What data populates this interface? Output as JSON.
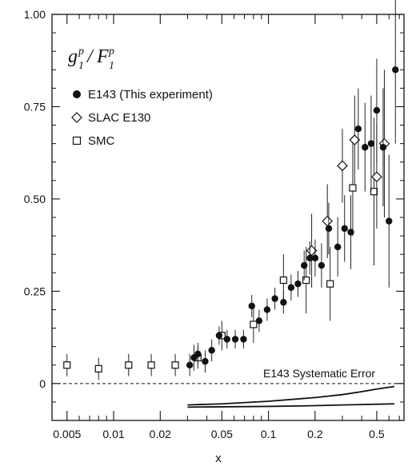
{
  "chart_data": {
    "type": "scatter",
    "title": "",
    "ylabel": {
      "main": "g",
      "sup1": "p",
      "sub1": "1",
      "slash": "/",
      "main2": "F",
      "sup2": "p",
      "sub2": "1"
    },
    "xlabel": "x",
    "x_scale": "log",
    "xlim": [
      0.004,
      0.75
    ],
    "ylim": [
      -0.1,
      1.0
    ],
    "x_tick_labels": [
      "0.005",
      "0.01",
      "0.02",
      "0.05",
      "0.1",
      "0.2",
      "0.5"
    ],
    "x_tick_values": [
      0.005,
      0.01,
      0.02,
      0.05,
      0.1,
      0.2,
      0.5
    ],
    "y_tick_labels": [
      "0",
      "0.25",
      "0.50",
      "0.75",
      "1.00"
    ],
    "y_tick_values": [
      0,
      0.25,
      0.5,
      0.75,
      1.0
    ],
    "grid": false,
    "legend_position": "top-left",
    "series": [
      {
        "name": "E143 (This experiment)",
        "marker": "filled-circle",
        "points": [
          {
            "x": 0.031,
            "y": 0.05,
            "err": 0.03
          },
          {
            "x": 0.033,
            "y": 0.07,
            "err": 0.035
          },
          {
            "x": 0.035,
            "y": 0.08,
            "err": 0.03
          },
          {
            "x": 0.039,
            "y": 0.06,
            "err": 0.03
          },
          {
            "x": 0.043,
            "y": 0.09,
            "err": 0.03
          },
          {
            "x": 0.048,
            "y": 0.13,
            "err": 0.025
          },
          {
            "x": 0.054,
            "y": 0.12,
            "err": 0.025
          },
          {
            "x": 0.061,
            "y": 0.12,
            "err": 0.025
          },
          {
            "x": 0.069,
            "y": 0.12,
            "err": 0.025
          },
          {
            "x": 0.078,
            "y": 0.21,
            "err": 0.03
          },
          {
            "x": 0.087,
            "y": 0.17,
            "err": 0.03
          },
          {
            "x": 0.098,
            "y": 0.2,
            "err": 0.03
          },
          {
            "x": 0.11,
            "y": 0.23,
            "err": 0.03
          },
          {
            "x": 0.125,
            "y": 0.22,
            "err": 0.03
          },
          {
            "x": 0.14,
            "y": 0.26,
            "err": 0.035
          },
          {
            "x": 0.155,
            "y": 0.27,
            "err": 0.035
          },
          {
            "x": 0.17,
            "y": 0.32,
            "err": 0.04
          },
          {
            "x": 0.185,
            "y": 0.34,
            "err": 0.045
          },
          {
            "x": 0.2,
            "y": 0.34,
            "err": 0.05
          },
          {
            "x": 0.22,
            "y": 0.32,
            "err": 0.06
          },
          {
            "x": 0.245,
            "y": 0.42,
            "err": 0.07
          },
          {
            "x": 0.28,
            "y": 0.37,
            "err": 0.08
          },
          {
            "x": 0.31,
            "y": 0.42,
            "err": 0.09
          },
          {
            "x": 0.34,
            "y": 0.41,
            "err": 0.1
          },
          {
            "x": 0.38,
            "y": 0.69,
            "err": 0.11
          },
          {
            "x": 0.42,
            "y": 0.64,
            "err": 0.12
          },
          {
            "x": 0.46,
            "y": 0.65,
            "err": 0.13
          },
          {
            "x": 0.5,
            "y": 0.74,
            "err": 0.14
          },
          {
            "x": 0.55,
            "y": 0.64,
            "err": 0.16
          },
          {
            "x": 0.6,
            "y": 0.44,
            "err": 0.18
          },
          {
            "x": 0.66,
            "y": 0.85,
            "err": 0.2
          }
        ]
      },
      {
        "name": "SLAC E130",
        "marker": "open-diamond",
        "points": [
          {
            "x": 0.19,
            "y": 0.36,
            "err": 0.1
          },
          {
            "x": 0.24,
            "y": 0.44,
            "err": 0.1
          },
          {
            "x": 0.3,
            "y": 0.59,
            "err": 0.1
          },
          {
            "x": 0.36,
            "y": 0.66,
            "err": 0.12
          },
          {
            "x": 0.5,
            "y": 0.56,
            "err": 0.14
          },
          {
            "x": 0.56,
            "y": 0.65,
            "err": 0.2
          }
        ]
      },
      {
        "name": "SMC",
        "marker": "open-square",
        "points": [
          {
            "x": 0.005,
            "y": 0.05,
            "err": 0.03
          },
          {
            "x": 0.008,
            "y": 0.04,
            "err": 0.03
          },
          {
            "x": 0.0125,
            "y": 0.05,
            "err": 0.03
          },
          {
            "x": 0.0175,
            "y": 0.05,
            "err": 0.03
          },
          {
            "x": 0.025,
            "y": 0.05,
            "err": 0.03
          },
          {
            "x": 0.035,
            "y": 0.07,
            "err": 0.03
          },
          {
            "x": 0.05,
            "y": 0.13,
            "err": 0.04
          },
          {
            "x": 0.08,
            "y": 0.16,
            "err": 0.05
          },
          {
            "x": 0.125,
            "y": 0.28,
            "err": 0.07
          },
          {
            "x": 0.175,
            "y": 0.28,
            "err": 0.09
          },
          {
            "x": 0.25,
            "y": 0.27,
            "err": 0.1
          },
          {
            "x": 0.35,
            "y": 0.53,
            "err": 0.13
          },
          {
            "x": 0.48,
            "y": 0.52,
            "err": 0.2
          }
        ]
      }
    ],
    "annotations": [
      {
        "text": "E143 Systematic Error"
      }
    ],
    "systematic_band": {
      "x": [
        0.03,
        0.05,
        0.1,
        0.2,
        0.3,
        0.4,
        0.5,
        0.65
      ],
      "upper": [
        -0.058,
        -0.055,
        -0.048,
        -0.038,
        -0.03,
        -0.022,
        -0.015,
        -0.008
      ],
      "lower": [
        -0.064,
        -0.063,
        -0.062,
        -0.06,
        -0.058,
        -0.057,
        -0.056,
        -0.055
      ]
    }
  }
}
